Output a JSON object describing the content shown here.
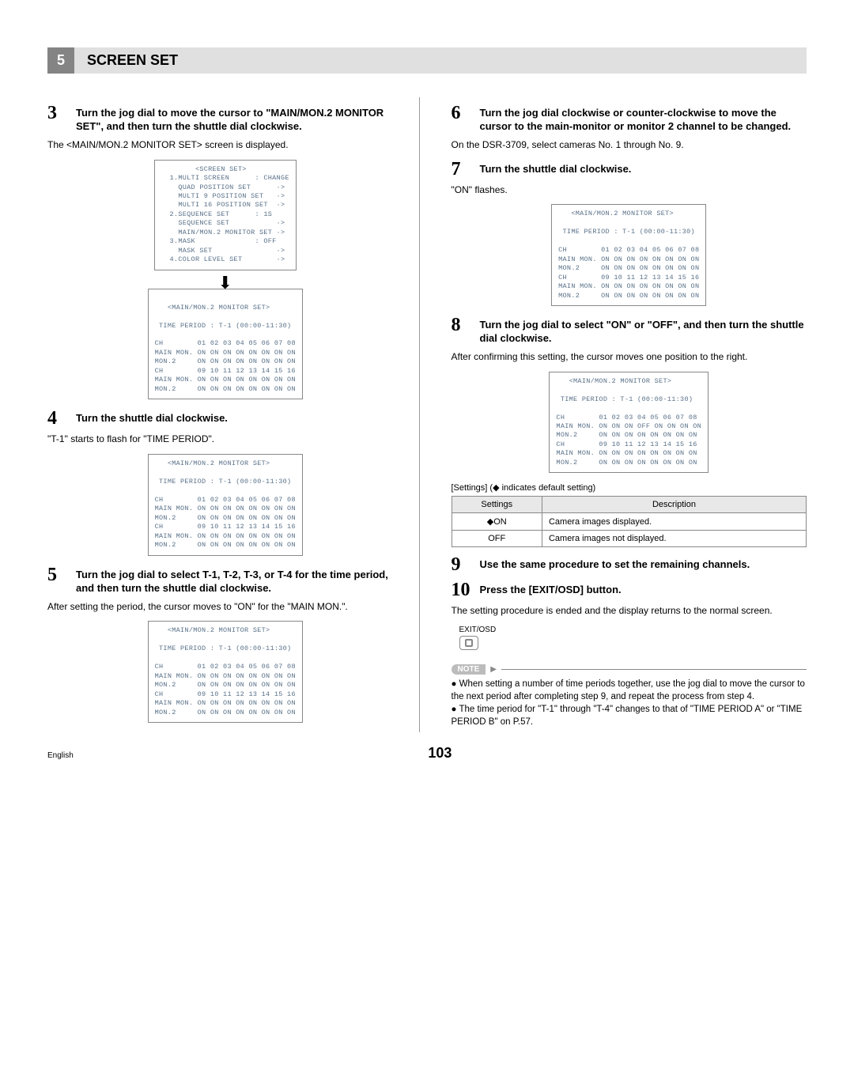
{
  "header": {
    "chapter_num": "5",
    "title": "SCREEN SET"
  },
  "left": {
    "step3": {
      "num": "3",
      "title": "Turn the jog dial to move the cursor to \"MAIN/MON.2 MONITOR SET\", and then turn the shuttle dial clockwise.",
      "body": "The <MAIN/MON.2 MONITOR SET> screen is displayed.",
      "screen1": "        <SCREEN SET>\n  1.MULTI SCREEN      : CHANGE\n    QUAD POSITION SET      ·>\n    MULTI 9 POSITION SET   ·>\n    MULTI 16 POSITION SET  ·>\n  2.SEQUENCE SET      : 1S\n    SEQUENCE SET           ·>\n    MAIN/MON.2 MONITOR SET ·>\n  3.MASK              : OFF\n    MASK SET               ·>\n  4.COLOR LEVEL SET        ·>",
      "screen2_title": "   <MAIN/MON.2 MONITOR SET>",
      "screen2_period": " TIME PERIOD : T-1 (00:00-11:30)",
      "screen2_body": "CH        01 02 03 04 05 06 07 08\nMAIN MON. ON ON ON ON ON ON ON ON\nMON.2     ON ON ON ON ON ON ON ON\nCH        09 10 11 12 13 14 15 16\nMAIN MON. ON ON ON ON ON ON ON ON\nMON.2     ON ON ON ON ON ON ON ON"
    },
    "step4": {
      "num": "4",
      "title": "Turn the shuttle dial clockwise.",
      "body": "\"T-1\" starts to flash for \"TIME PERIOD\".",
      "screen": "   <MAIN/MON.2 MONITOR SET>\n\n TIME PERIOD : T-1 (00:00-11:30)\n\nCH        01 02 03 04 05 06 07 08\nMAIN MON. ON ON ON ON ON ON ON ON\nMON.2     ON ON ON ON ON ON ON ON\nCH        09 10 11 12 13 14 15 16\nMAIN MON. ON ON ON ON ON ON ON ON\nMON.2     ON ON ON ON ON ON ON ON"
    },
    "step5": {
      "num": "5",
      "title": "Turn the jog dial to select T-1, T-2, T-3, or T-4 for the time period, and then turn the shuttle dial clockwise.",
      "body": "After setting the period, the cursor moves to \"ON\" for the \"MAIN MON.\".",
      "screen": "   <MAIN/MON.2 MONITOR SET>\n\n TIME PERIOD : T-1 (00:00-11:30)\n\nCH        01 02 03 04 05 06 07 08\nMAIN MON. ON ON ON ON ON ON ON ON\nMON.2     ON ON ON ON ON ON ON ON\nCH        09 10 11 12 13 14 15 16\nMAIN MON. ON ON ON ON ON ON ON ON\nMON.2     ON ON ON ON ON ON ON ON"
    }
  },
  "right": {
    "step6": {
      "num": "6",
      "title": "Turn the jog dial clockwise or counter-clockwise to move the cursor to the main-monitor or monitor 2 channel to be changed.",
      "body": "On the DSR-3709, select cameras No. 1 through No. 9."
    },
    "step7": {
      "num": "7",
      "title": "Turn the shuttle dial clockwise.",
      "body": "\"ON\" flashes.",
      "screen": "   <MAIN/MON.2 MONITOR SET>\n\n TIME PERIOD : T-1 (00:00-11:30)\n\nCH        01 02 03 04 05 06 07 08\nMAIN MON. ON ON ON ON ON ON ON ON\nMON.2     ON ON ON ON ON ON ON ON\nCH        09 10 11 12 13 14 15 16\nMAIN MON. ON ON ON ON ON ON ON ON\nMON.2     ON ON ON ON ON ON ON ON"
    },
    "step8": {
      "num": "8",
      "title": "Turn the jog dial to select \"ON\" or \"OFF\", and then turn the shuttle dial clockwise.",
      "body": "After confirming this setting, the cursor moves one position to the right.",
      "screen": "   <MAIN/MON.2 MONITOR SET>\n\n TIME PERIOD : T-1 (00:00-11:30)\n\nCH        01 02 03 04 05 06 07 08\nMAIN MON. ON ON ON OFF ON ON ON ON\nMON.2     ON ON ON ON ON ON ON ON\nCH        09 10 11 12 13 14 15 16\nMAIN MON. ON ON ON ON ON ON ON ON\nMON.2     ON ON ON ON ON ON ON ON"
    },
    "settings": {
      "caption": "[Settings] (◆ indicates default setting)",
      "cols": [
        "Settings",
        "Description"
      ],
      "rows": [
        [
          "◆ON",
          "Camera images displayed."
        ],
        [
          "OFF",
          "Camera images not displayed."
        ]
      ]
    },
    "step9": {
      "num": "9",
      "title": "Use the same procedure to set the remaining channels."
    },
    "step10": {
      "num": "10",
      "title": "Press the [EXIT/OSD] button.",
      "body": "The setting procedure is ended and the display returns to the normal screen.",
      "btn_label": "EXIT/OSD"
    },
    "note": {
      "label": "NOTE",
      "items": [
        "When setting a number of time periods together, use the jog dial to move the cursor to the next period after completing step 9, and repeat the process from step 4.",
        "The time period for \"T-1\" through \"T-4\" changes to that of \"TIME PERIOD A\" or \"TIME PERIOD B\" on P.57."
      ]
    }
  },
  "footer": {
    "lang": "English",
    "page": "103"
  }
}
